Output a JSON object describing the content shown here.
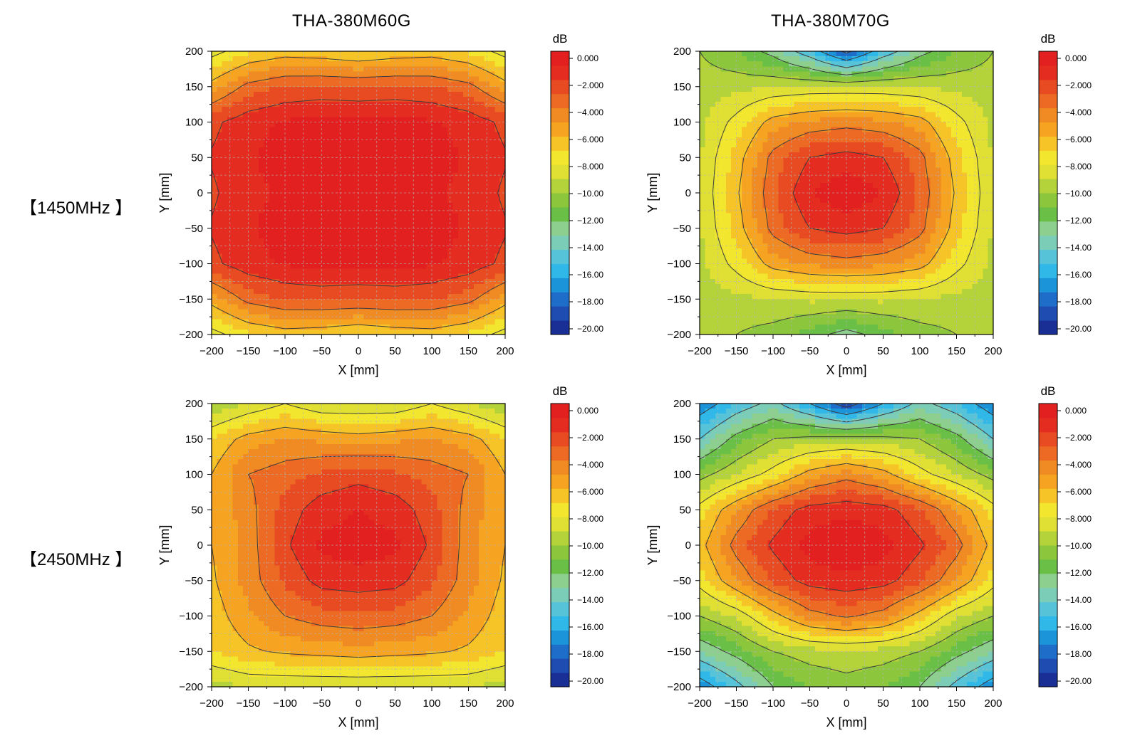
{
  "columns": [
    {
      "title": "THA-380M60G"
    },
    {
      "title": "THA-380M70G"
    }
  ],
  "rows": [
    {
      "label": "【1450MHz 】"
    },
    {
      "label": "【2450MHz 】"
    }
  ],
  "colors": {
    "colorbar": [
      "#1a2f96",
      "#1f4cb0",
      "#1e6dc8",
      "#1c94d9",
      "#30b8e8",
      "#57c3d9",
      "#7ccdb8",
      "#8ccf8e",
      "#6abf46",
      "#8bc63d",
      "#b4d239",
      "#e0e034",
      "#f3e62e",
      "#f6c426",
      "#f5a321",
      "#f08a22",
      "#ec6a23",
      "#e84a22",
      "#e42c20",
      "#e2201f"
    ],
    "contour_line": "#3c3c3c",
    "grid_line": "#b4b4b4"
  },
  "chart_data": [
    {
      "type": "heatmap",
      "panel": "THA-380M60G 【1450MHz 】",
      "title": "THA-380M60G",
      "row": "【1450MHz 】",
      "xlabel": "X [mm]",
      "ylabel": "Y [mm]",
      "xlim": [
        -200,
        200
      ],
      "ylim": [
        -200,
        200
      ],
      "x_ticks": [
        "−200",
        "−150",
        "−100",
        "−50",
        "0",
        "50",
        "100",
        "150",
        "200"
      ],
      "y_ticks": [
        "200",
        "150",
        "100",
        "50",
        "0",
        "−50",
        "−100",
        "−150",
        "−200"
      ],
      "x": [
        -200,
        -150,
        -100,
        -50,
        0,
        50,
        100,
        150,
        200
      ],
      "y": [
        200,
        150,
        100,
        50,
        0,
        -50,
        -100,
        -150,
        -200
      ],
      "z": [
        [
          -8.5,
          -7.2,
          -6.6,
          -6.8,
          -7.2,
          -6.8,
          -6.6,
          -7.2,
          -8.5
        ],
        [
          -5.5,
          -3.6,
          -2.9,
          -2.8,
          -2.9,
          -2.8,
          -2.9,
          -3.6,
          -5.5
        ],
        [
          -2.3,
          -1.3,
          -0.9,
          -0.6,
          -0.7,
          -0.6,
          -0.9,
          -1.3,
          -2.3
        ],
        [
          -1.9,
          -1.1,
          -0.6,
          -0.3,
          -0.5,
          -0.3,
          -0.6,
          -1.1,
          -1.9
        ],
        [
          -2.2,
          -1.2,
          -0.9,
          -0.8,
          -0.9,
          -0.8,
          -0.9,
          -1.2,
          -2.2
        ],
        [
          -1.9,
          -1.1,
          -0.6,
          -0.3,
          -0.5,
          -0.3,
          -0.6,
          -1.1,
          -1.9
        ],
        [
          -2.3,
          -1.3,
          -0.9,
          -0.6,
          -0.7,
          -0.6,
          -0.9,
          -1.3,
          -2.3
        ],
        [
          -5.5,
          -3.6,
          -2.9,
          -2.8,
          -2.9,
          -2.8,
          -2.9,
          -3.6,
          -5.5
        ],
        [
          -8.5,
          -7.2,
          -6.6,
          -6.8,
          -7.2,
          -6.8,
          -6.6,
          -7.2,
          -8.5
        ]
      ],
      "colorbar": {
        "label": "dB",
        "range": [
          -20,
          0
        ],
        "ticks": [
          "0.000",
          "−2.000",
          "−4.000",
          "−6.000",
          "−8.000",
          "−10.00",
          "−12.00",
          "−14.00",
          "−16.00",
          "−18.00",
          "−20.00"
        ]
      },
      "grid": true
    },
    {
      "type": "heatmap",
      "panel": "THA-380M70G 【1450MHz 】",
      "title": "THA-380M70G",
      "row": "【1450MHz 】",
      "xlabel": "X [mm]",
      "ylabel": "Y [mm]",
      "xlim": [
        -200,
        200
      ],
      "ylim": [
        -200,
        200
      ],
      "x_ticks": [
        "−200",
        "−150",
        "−100",
        "−50",
        "0",
        "50",
        "100",
        "150",
        "200"
      ],
      "y_ticks": [
        "200",
        "150",
        "100",
        "50",
        "0",
        "−50",
        "−100",
        "−150",
        "−200"
      ],
      "x": [
        -200,
        -150,
        -100,
        -50,
        0,
        50,
        100,
        150,
        200
      ],
      "y": [
        200,
        150,
        100,
        50,
        0,
        -50,
        -100,
        -150,
        -200
      ],
      "z": [
        [
          -10.0,
          -11.0,
          -12.5,
          -15.0,
          -18.5,
          -15.0,
          -12.5,
          -11.0,
          -10.0
        ],
        [
          -9.5,
          -9.3,
          -9.0,
          -8.8,
          -8.8,
          -8.8,
          -9.0,
          -9.3,
          -9.5
        ],
        [
          -9.3,
          -7.6,
          -5.5,
          -4.8,
          -4.5,
          -4.8,
          -5.5,
          -7.6,
          -9.3
        ],
        [
          -9.1,
          -6.6,
          -3.6,
          -2.0,
          -1.5,
          -2.0,
          -3.6,
          -6.6,
          -9.1
        ],
        [
          -9.0,
          -6.2,
          -3.2,
          -1.0,
          -0.3,
          -1.0,
          -3.2,
          -6.2,
          -9.0
        ],
        [
          -9.1,
          -6.6,
          -3.6,
          -2.0,
          -1.5,
          -2.0,
          -3.6,
          -6.6,
          -9.1
        ],
        [
          -9.3,
          -7.6,
          -5.5,
          -4.8,
          -4.5,
          -4.8,
          -5.5,
          -7.6,
          -9.3
        ],
        [
          -9.5,
          -9.3,
          -9.0,
          -8.8,
          -8.8,
          -8.8,
          -9.0,
          -9.3,
          -9.5
        ],
        [
          -9.5,
          -10.0,
          -10.5,
          -11.5,
          -12.5,
          -11.5,
          -10.5,
          -10.0,
          -9.5
        ]
      ],
      "colorbar": {
        "label": "dB",
        "range": [
          -20,
          0
        ],
        "ticks": [
          "0.000",
          "−2.000",
          "−4.000",
          "−6.000",
          "−8.000",
          "−10.00",
          "−12.00",
          "−14.00",
          "−16.00",
          "−18.00",
          "−20.00"
        ]
      },
      "grid": true
    },
    {
      "type": "heatmap",
      "panel": "THA-380M60G 【2450MHz 】",
      "title": "THA-380M60G",
      "row": "【2450MHz 】",
      "xlabel": "X [mm]",
      "ylabel": "Y [mm]",
      "xlim": [
        -200,
        200
      ],
      "ylim": [
        -200,
        200
      ],
      "x_ticks": [
        "−200",
        "−150",
        "−100",
        "−50",
        "0",
        "50",
        "100",
        "150",
        "200"
      ],
      "y_ticks": [
        "200",
        "150",
        "100",
        "50",
        "0",
        "−50",
        "−100",
        "−150",
        "−200"
      ],
      "x": [
        -200,
        -150,
        -100,
        -50,
        0,
        50,
        100,
        150,
        200
      ],
      "y": [
        200,
        150,
        100,
        50,
        0,
        -50,
        -100,
        -150,
        -200
      ],
      "z": [
        [
          -10.0,
          -9.0,
          -8.0,
          -9.0,
          -9.0,
          -9.0,
          -8.0,
          -9.0,
          -10.0
        ],
        [
          -7.0,
          -5.5,
          -5.0,
          -5.2,
          -5.5,
          -5.2,
          -5.0,
          -5.5,
          -7.0
        ],
        [
          -6.0,
          -4.0,
          -3.4,
          -2.8,
          -2.4,
          -2.8,
          -3.4,
          -4.0,
          -6.0
        ],
        [
          -6.0,
          -4.4,
          -2.6,
          -1.4,
          -1.0,
          -1.4,
          -2.6,
          -4.4,
          -6.0
        ],
        [
          -6.0,
          -4.6,
          -2.2,
          -0.8,
          -0.5,
          -0.8,
          -2.2,
          -4.6,
          -6.0
        ],
        [
          -6.2,
          -4.6,
          -2.8,
          -1.6,
          -1.4,
          -1.6,
          -2.8,
          -4.6,
          -6.2
        ],
        [
          -6.6,
          -5.2,
          -4.0,
          -3.4,
          -3.2,
          -3.4,
          -4.0,
          -5.2,
          -6.6
        ],
        [
          -7.0,
          -6.2,
          -5.8,
          -5.6,
          -5.4,
          -5.6,
          -5.8,
          -6.2,
          -7.0
        ],
        [
          -9.5,
          -9.0,
          -9.0,
          -9.0,
          -9.0,
          -9.0,
          -9.0,
          -9.0,
          -9.5
        ]
      ],
      "colorbar": {
        "label": "dB",
        "range": [
          -20,
          0
        ],
        "ticks": [
          "0.000",
          "−2.000",
          "−4.000",
          "−6.000",
          "−8.000",
          "−10.00",
          "−12.00",
          "−14.00",
          "−16.00",
          "−18.00",
          "−20.00"
        ]
      },
      "grid": true
    },
    {
      "type": "heatmap",
      "panel": "THA-380M70G 【2450MHz 】",
      "title": "THA-380M70G",
      "row": "【2450MHz 】",
      "xlabel": "X [mm]",
      "ylabel": "Y [mm]",
      "xlim": [
        -200,
        200
      ],
      "ylim": [
        -200,
        200
      ],
      "x_ticks": [
        "−200",
        "−150",
        "−100",
        "−50",
        "0",
        "50",
        "100",
        "150",
        "200"
      ],
      "y_ticks": [
        "200",
        "150",
        "100",
        "50",
        "0",
        "−50",
        "−100",
        "−150",
        "−200"
      ],
      "x": [
        -200,
        -150,
        -100,
        -50,
        0,
        50,
        100,
        150,
        200
      ],
      "y": [
        200,
        150,
        100,
        50,
        0,
        -50,
        -100,
        -150,
        -200
      ],
      "z": [
        [
          -17.0,
          -15.0,
          -13.5,
          -16.0,
          -19.0,
          -16.0,
          -13.5,
          -15.0,
          -17.0
        ],
        [
          -14.0,
          -11.5,
          -10.0,
          -9.6,
          -9.4,
          -9.6,
          -10.0,
          -11.5,
          -14.0
        ],
        [
          -10.5,
          -9.0,
          -7.5,
          -5.5,
          -4.5,
          -5.5,
          -7.5,
          -9.0,
          -10.5
        ],
        [
          -7.5,
          -5.0,
          -2.8,
          -1.5,
          -1.2,
          -1.5,
          -2.8,
          -5.0,
          -7.5
        ],
        [
          -6.5,
          -3.5,
          -1.8,
          -0.6,
          -0.3,
          -0.6,
          -1.8,
          -3.5,
          -6.5
        ],
        [
          -7.5,
          -5.0,
          -2.8,
          -1.5,
          -1.2,
          -1.5,
          -2.8,
          -5.0,
          -7.5
        ],
        [
          -10.0,
          -8.8,
          -6.5,
          -4.5,
          -3.8,
          -4.5,
          -6.5,
          -8.8,
          -10.0
        ],
        [
          -13.0,
          -11.5,
          -10.0,
          -9.4,
          -9.2,
          -9.4,
          -10.0,
          -11.5,
          -13.0
        ],
        [
          -17.0,
          -14.5,
          -12.0,
          -11.0,
          -10.5,
          -11.0,
          -12.0,
          -14.5,
          -17.0
        ]
      ],
      "colorbar": {
        "label": "dB",
        "range": [
          -20,
          0
        ],
        "ticks": [
          "0.000",
          "−2.000",
          "−4.000",
          "−6.000",
          "−8.000",
          "−10.00",
          "−12.00",
          "−14.00",
          "−16.00",
          "−18.00",
          "−20.00"
        ]
      },
      "grid": true
    }
  ]
}
